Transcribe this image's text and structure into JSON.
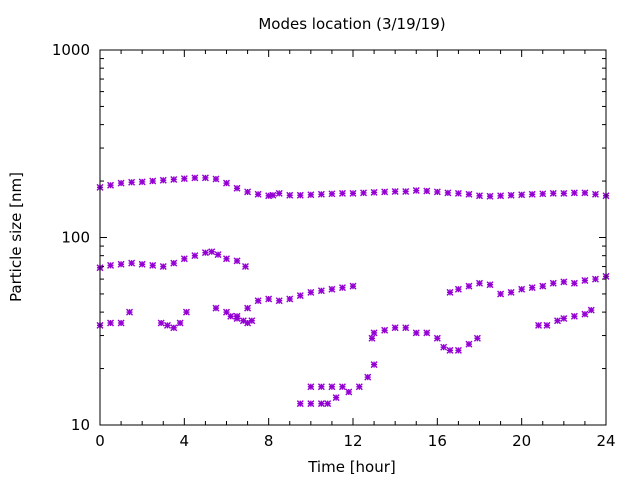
{
  "chart_data": {
    "type": "scatter",
    "title": "Modes location (3/19/19)",
    "xlabel": "Time [hour]",
    "ylabel": "Particle size [nm]",
    "xlim": [
      0,
      24
    ],
    "ylim": [
      10,
      1000
    ],
    "y_scale": "log",
    "x_ticks": [
      0,
      4,
      8,
      12,
      16,
      20,
      24
    ],
    "x_tick_labels": [
      "0",
      "4",
      "8",
      "12",
      "16",
      "20",
      "24"
    ],
    "y_ticks": [
      10,
      100,
      1000
    ],
    "y_tick_labels": [
      "10",
      "100",
      "1000"
    ],
    "grid": false,
    "legend": "none",
    "marker": "asterisk",
    "color": "#9400D3",
    "series": [
      {
        "x": [
          0.0,
          0.5,
          1.0,
          1.5,
          2.0,
          2.5,
          3.0,
          3.5,
          4.0,
          4.5,
          5.0,
          5.5,
          6.0,
          6.5,
          7.0,
          7.5,
          8.0,
          8.2,
          8.5,
          9.0,
          9.5,
          10.0,
          10.5,
          11.0,
          11.5,
          12.0,
          12.5,
          13.0,
          13.5,
          14.0,
          14.5,
          15.0,
          15.5,
          16.0,
          16.5,
          17.0,
          17.5,
          18.0,
          18.5,
          19.0,
          19.5,
          20.0,
          20.5,
          21.0,
          21.5,
          22.0,
          22.5,
          23.0,
          23.5,
          24.0
        ],
        "y": [
          185,
          190,
          195,
          197,
          198,
          200,
          202,
          204,
          206,
          208,
          208,
          205,
          195,
          183,
          175,
          170,
          167,
          168,
          172,
          168,
          168,
          169,
          170,
          171,
          172,
          172,
          173,
          174,
          175,
          176,
          176,
          178,
          177,
          175,
          173,
          172,
          170,
          167,
          166,
          167,
          168,
          169,
          170,
          171,
          172,
          172,
          173,
          173,
          170,
          167
        ]
      },
      {
        "x": [
          0.0,
          0.5,
          1.0,
          1.5,
          2.0,
          2.5,
          3.0,
          3.5,
          4.0,
          4.5,
          5.0,
          5.3,
          5.6,
          6.0,
          6.5,
          6.9
        ],
        "y": [
          69,
          71,
          72,
          73,
          72,
          71,
          70,
          73,
          77,
          80,
          83,
          84,
          81,
          77,
          75,
          70
        ]
      },
      {
        "x": [
          5.5,
          6.0,
          6.5,
          7.0,
          7.5,
          8.0,
          8.5,
          9.0,
          9.5,
          10.0,
          10.5,
          11.0,
          11.5,
          12.0,
          16.6,
          17.0,
          17.5,
          18.0,
          18.5,
          19.0,
          19.5,
          20.0,
          20.5,
          21.0,
          21.5,
          22.0,
          22.5,
          23.0,
          23.5,
          24.0
        ],
        "y": [
          42,
          40,
          38,
          42,
          46,
          47,
          46,
          47,
          49,
          51,
          52,
          53,
          54,
          55,
          51,
          53,
          55,
          57,
          56,
          50,
          51,
          53,
          54,
          55,
          57,
          58,
          57,
          59,
          60,
          62
        ]
      },
      {
        "x": [
          0.0,
          0.5,
          1.0,
          1.4,
          2.9,
          3.2,
          3.5,
          3.8,
          4.1,
          6.2,
          6.5,
          6.8,
          7.0,
          7.2
        ],
        "y": [
          34,
          35,
          35,
          40,
          35,
          34,
          33,
          35,
          40,
          38,
          37,
          36,
          35,
          36
        ]
      },
      {
        "x": [
          12.9,
          13.0,
          13.5,
          14.0,
          14.5,
          15.0,
          15.5,
          16.0,
          16.3,
          16.6,
          17.0,
          17.5,
          17.9,
          20.8,
          21.2,
          21.7,
          22.0,
          22.5,
          23.0,
          23.3
        ],
        "y": [
          29,
          31,
          32,
          33,
          33,
          31,
          31,
          29,
          26,
          25,
          25,
          27,
          29,
          34,
          34,
          36,
          37,
          38,
          39,
          41
        ]
      },
      {
        "x": [
          9.5,
          10.0,
          10.5,
          10.8,
          10.0,
          10.5,
          11.0,
          11.5,
          11.2,
          11.8,
          12.3,
          12.7,
          13.0
        ],
        "y": [
          13,
          13,
          13,
          13,
          16,
          16,
          16,
          16,
          14,
          15,
          16,
          18,
          21
        ]
      }
    ]
  }
}
